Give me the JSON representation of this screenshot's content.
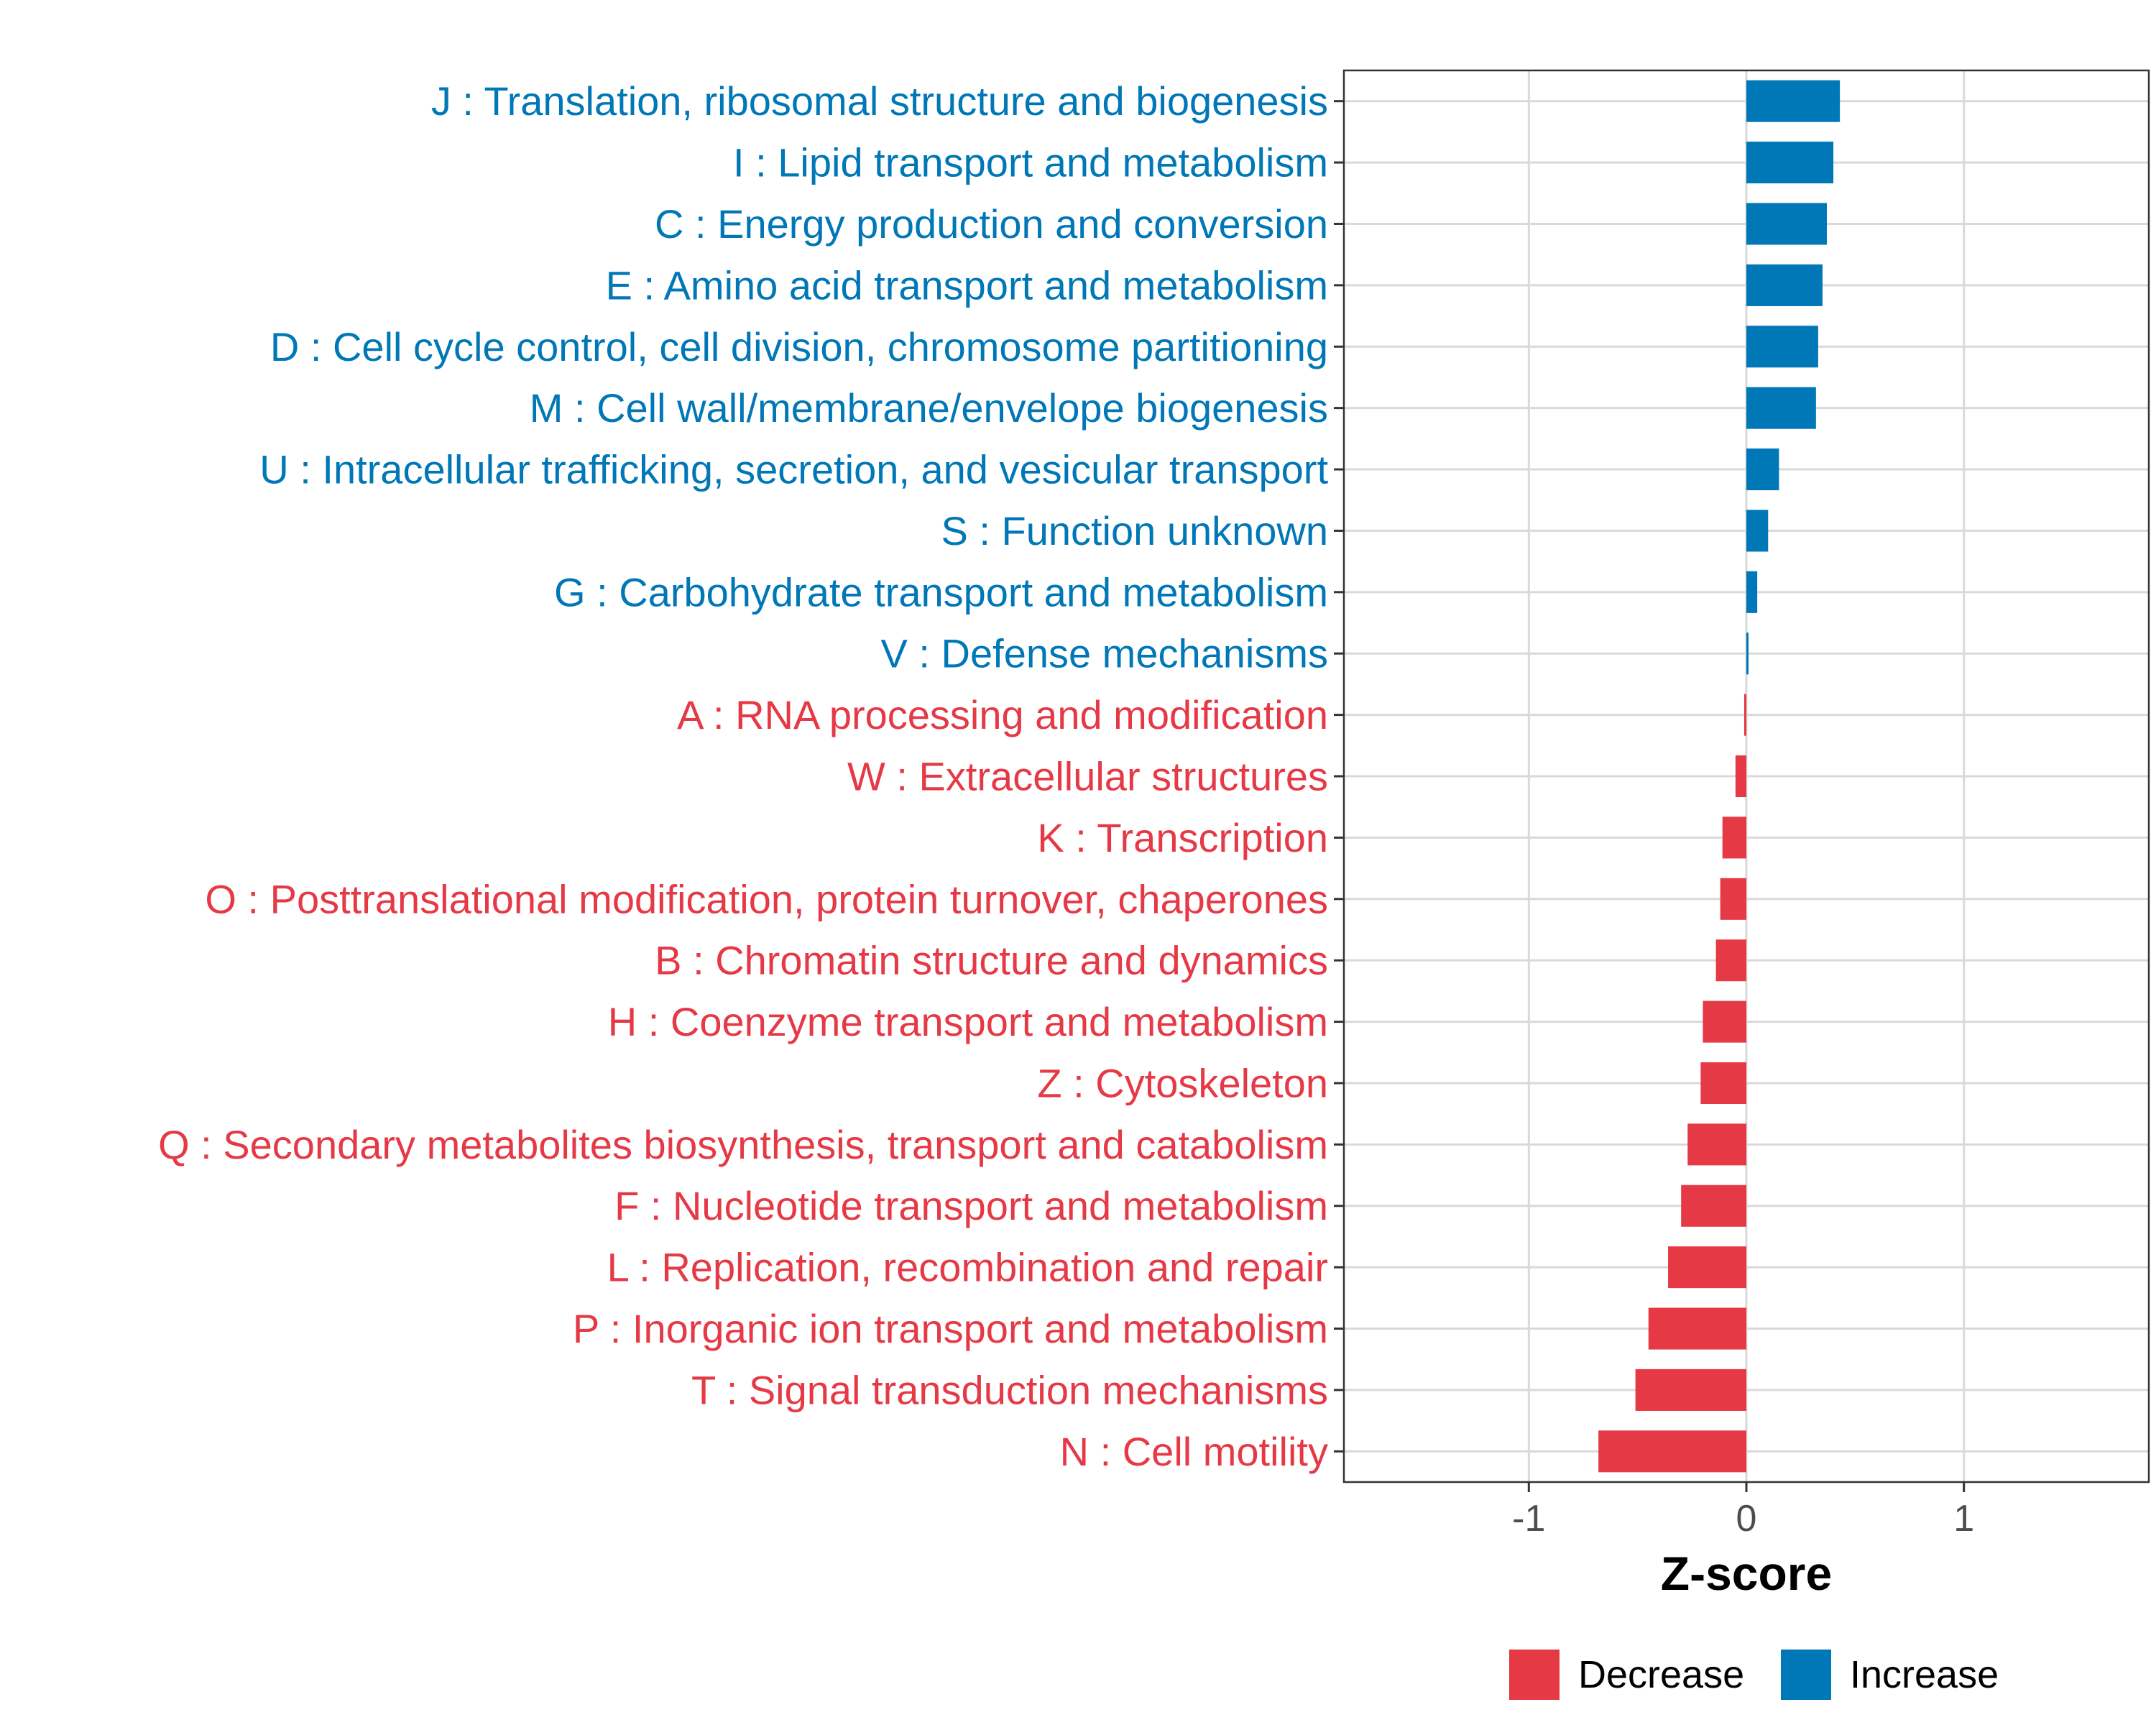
{
  "chart_data": {
    "type": "bar",
    "orientation": "horizontal",
    "xlabel": "Z-score",
    "ylabel": "",
    "xlim": [
      -1.85,
      1.85
    ],
    "x_ticks": [
      -1,
      0,
      1
    ],
    "x_tick_labels": [
      "-1",
      "0",
      "1"
    ],
    "grid": true,
    "legend_position": "bottom",
    "colors": {
      "Decrease": "#e63946",
      "Increase": "#0077b6"
    },
    "legend": [
      {
        "name": "Decrease",
        "color": "#e63946"
      },
      {
        "name": "Increase",
        "color": "#0077b6"
      }
    ],
    "categories": [
      "J : Translation, ribosomal structure and biogenesis",
      "I : Lipid transport and metabolism",
      "C : Energy production and conversion",
      "E : Amino acid transport and metabolism",
      "D : Cell cycle control, cell division, chromosome partitioning",
      "M : Cell wall/membrane/envelope biogenesis",
      "U : Intracellular trafficking, secretion, and vesicular transport",
      "S : Function unknown",
      "G : Carbohydrate transport and metabolism",
      "V : Defense mechanisms",
      "A : RNA processing and modification",
      "W : Extracellular structures",
      "K : Transcription",
      "O : Posttranslational modification, protein turnover, chaperones",
      "B : Chromatin structure and dynamics",
      "H : Coenzyme transport and metabolism",
      "Z : Cytoskeleton",
      "Q : Secondary metabolites biosynthesis, transport and catabolism",
      "F : Nucleotide transport and metabolism",
      "L : Replication, recombination and repair",
      "P : Inorganic ion transport and metabolism",
      "T : Signal transduction mechanisms",
      "N : Cell motility"
    ],
    "values": [
      0.43,
      0.4,
      0.37,
      0.35,
      0.33,
      0.32,
      0.15,
      0.1,
      0.05,
      0.01,
      -0.01,
      -0.05,
      -0.11,
      -0.12,
      -0.14,
      -0.2,
      -0.21,
      -0.27,
      -0.3,
      -0.36,
      -0.45,
      -0.51,
      -0.68
    ],
    "groups": [
      "Increase",
      "Increase",
      "Increase",
      "Increase",
      "Increase",
      "Increase",
      "Increase",
      "Increase",
      "Increase",
      "Increase",
      "Decrease",
      "Decrease",
      "Decrease",
      "Decrease",
      "Decrease",
      "Decrease",
      "Decrease",
      "Decrease",
      "Decrease",
      "Decrease",
      "Decrease",
      "Decrease",
      "Decrease"
    ]
  }
}
